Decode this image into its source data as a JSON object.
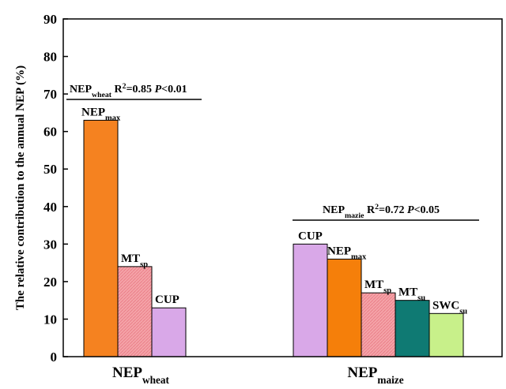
{
  "chart_data": {
    "type": "bar",
    "ylabel": "The relative contribution to the annual NEP (%)",
    "ylim": [
      0,
      90
    ],
    "yticks": [
      0,
      10,
      20,
      30,
      40,
      50,
      60,
      70,
      80,
      90
    ],
    "grid": false,
    "groups": [
      {
        "label": "NEP",
        "label_sub": "wheat",
        "annotation": {
          "prefix": "NEP",
          "prefix_sub": "wheat",
          "r2_text": "R",
          "r2_sup": "2",
          "r2_value": "=0.85",
          "p_text": "P",
          "p_value": "<0.01"
        },
        "bars": [
          {
            "label": "NEP",
            "label_sub": "max",
            "value": 63,
            "color": "#f58220",
            "hatch": false
          },
          {
            "label": "MT",
            "label_sub": "sp",
            "value": 24,
            "color": "#f4a3a8",
            "hatch": true
          },
          {
            "label": "CUP",
            "label_sub": "",
            "value": 13,
            "color": "#d9a8e8",
            "hatch": false
          }
        ]
      },
      {
        "label": "NEP",
        "label_sub": "maize",
        "annotation": {
          "prefix": "NEP",
          "prefix_sub": "mazie",
          "r2_text": "R",
          "r2_sup": "2",
          "r2_value": "=0.72",
          "p_text": "P",
          "p_value": "<0.05"
        },
        "bars": [
          {
            "label": "CUP",
            "label_sub": "",
            "value": 30,
            "color": "#d9a8e8",
            "hatch": false
          },
          {
            "label": "NEP",
            "label_sub": "max",
            "value": 26,
            "color": "#f57f0a",
            "hatch": false
          },
          {
            "label": "MT",
            "label_sub": "sp",
            "value": 17,
            "color": "#f4a3a8",
            "hatch": true
          },
          {
            "label": "MT",
            "label_sub": "su",
            "value": 15,
            "color": "#0f7a73",
            "hatch": false
          },
          {
            "label": "SWC",
            "label_sub": "su",
            "value": 11.5,
            "color": "#c8f08a",
            "hatch": false
          }
        ]
      }
    ]
  }
}
